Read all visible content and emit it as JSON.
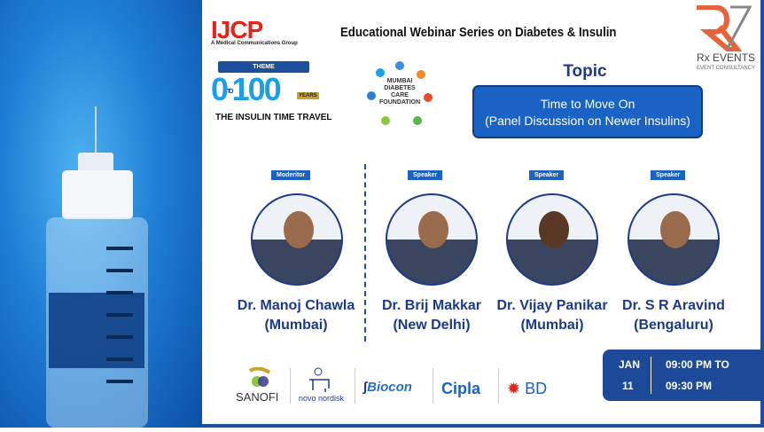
{
  "header": {
    "logo": "IJCP",
    "logo_tagline": "A Medical Communications Group",
    "title": "Educational Webinar Series on Diabetes & Insulin",
    "rx_logo": "Rx EVENTS",
    "rx_tagline": "EVENT CONSULTANCY"
  },
  "theme": {
    "label": "THEME",
    "from": "0",
    "to_text": "TO",
    "to": "100",
    "years": "YEARS",
    "subtitle": "THE INSULIN TIME TRAVEL"
  },
  "foundation": "MUMBAI DIABETES CARE FOUNDATION",
  "topic": {
    "heading": "Topic",
    "line1": "Time to Move On",
    "line2": "(Panel Discussion on Newer Insulins)"
  },
  "speakers": [
    {
      "role": "Moderitor",
      "name": "Dr. Manoj Chawla",
      "city": "(Mumbai)"
    },
    {
      "role": "Speaker",
      "name": "Dr. Brij Makkar",
      "city": "(New Delhi)"
    },
    {
      "role": "Speaker",
      "name": "Dr. Vijay Panikar",
      "city": "(Mumbai)"
    },
    {
      "role": "Speaker",
      "name": "Dr. S R Aravind",
      "city": "(Bengaluru)"
    }
  ],
  "sponsors": [
    "SANOFI",
    "novo nordisk",
    "Biocon",
    "Cipla",
    "BD"
  ],
  "date": {
    "month": "JAN",
    "day": "11",
    "start": "09:00 PM TO",
    "end": "09:30 PM"
  },
  "colors": {
    "brand_blue": "#1d4a98",
    "accent_red": "#e2241b"
  }
}
